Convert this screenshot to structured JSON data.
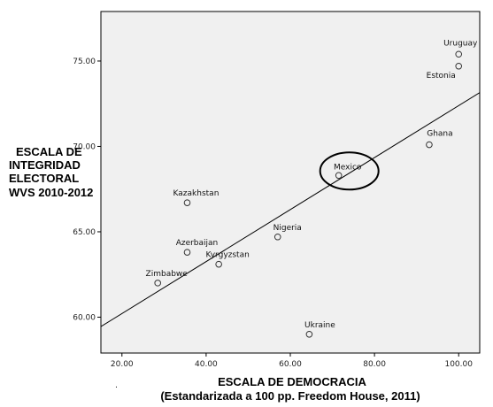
{
  "chart_data": {
    "type": "scatter",
    "xlabel": "ESCALA DE DEMOCRACIA",
    "xlabel_sub": "(Estandarizada a 100 pp. Freedom House, 2011)",
    "ylabel_lines": [
      "ESCALA DE",
      "INTEGRIDAD",
      "ELECTORAL",
      "WVS 2010-2012"
    ],
    "xlim": [
      15,
      105
    ],
    "ylim": [
      57.9,
      77.9
    ],
    "x_ticks": [
      20,
      40,
      60,
      80,
      100
    ],
    "x_tick_labels": [
      "20.00",
      "40.00",
      "60.00",
      "80.00",
      "100.00"
    ],
    "y_ticks": [
      60,
      65,
      70,
      75
    ],
    "y_tick_labels": [
      "60.00",
      "65.00",
      "70.00",
      "75.00"
    ],
    "grid": false,
    "points": [
      {
        "name": "Uruguay",
        "x": 100,
        "y": 75.4
      },
      {
        "name": "Estonia",
        "x": 100,
        "y": 74.7
      },
      {
        "name": "Ghana",
        "x": 93,
        "y": 70.1
      },
      {
        "name": "Mexico",
        "x": 71.5,
        "y": 68.3
      },
      {
        "name": "Kazakhstan",
        "x": 35.5,
        "y": 66.7
      },
      {
        "name": "Nigeria",
        "x": 57,
        "y": 64.7
      },
      {
        "name": "Azerbaijan",
        "x": 35.5,
        "y": 63.8
      },
      {
        "name": "Kyrgyzstan",
        "x": 43,
        "y": 63.1
      },
      {
        "name": "Zimbabwe",
        "x": 28.5,
        "y": 62
      },
      {
        "name": "Ukraine",
        "x": 64.5,
        "y": 59
      }
    ],
    "fit_line": {
      "x": [
        15,
        105
      ],
      "y": [
        59.45,
        73.15
      ]
    },
    "highlight": "Mexico",
    "stray_mark": "."
  },
  "colors": {
    "plot_background": "#f0f0f0",
    "axis": "#000000",
    "point_stroke": "#333333",
    "highlight_stroke": "#000000"
  }
}
